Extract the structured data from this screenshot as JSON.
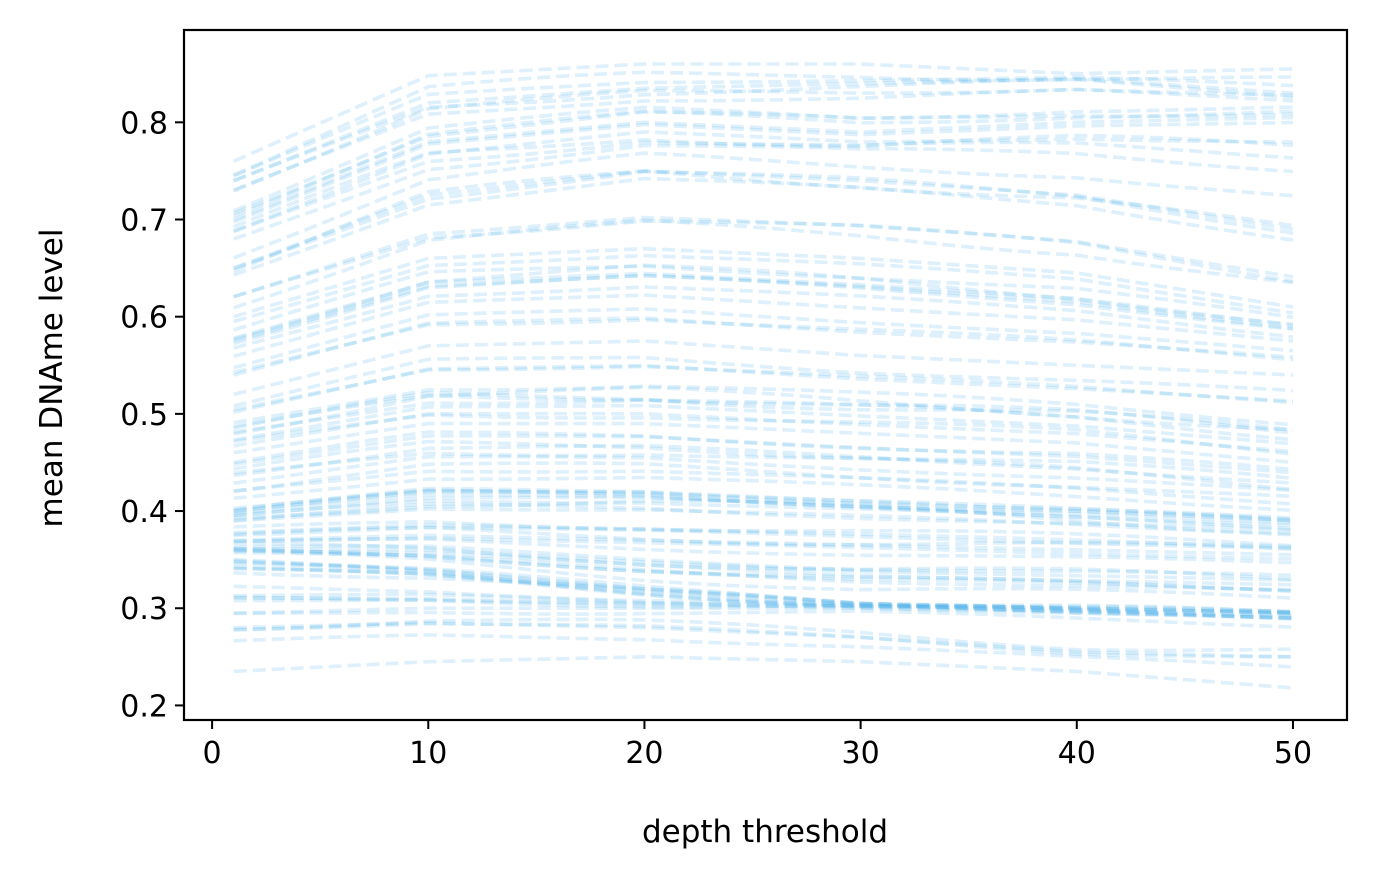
{
  "chart_data": {
    "type": "line",
    "title": "",
    "xlabel": "depth threshold",
    "ylabel": "mean DNAme level",
    "xlim": [
      -1.3,
      52.5
    ],
    "ylim": [
      0.185,
      0.895
    ],
    "xticks": [
      0,
      10,
      20,
      30,
      40,
      50
    ],
    "yticks": [
      0.2,
      0.3,
      0.4,
      0.5,
      0.6,
      0.7,
      0.8
    ],
    "grid": false,
    "legend": "none",
    "line_style": "dashed",
    "line_color": "#56b4e9",
    "line_opacity": 0.2,
    "x": [
      1,
      2,
      3,
      4,
      5,
      6,
      7,
      8,
      9,
      10,
      11,
      12,
      13,
      14,
      15,
      16,
      17,
      18,
      19,
      20,
      21,
      22,
      23,
      24,
      25,
      26,
      27,
      28,
      29,
      30,
      31,
      32,
      33,
      34,
      35,
      36,
      37,
      38,
      39,
      40,
      41,
      42,
      43,
      44,
      45,
      46,
      47,
      48,
      49,
      50
    ],
    "series_summary": {
      "count": 105,
      "x_start": 1,
      "x_end": 50,
      "min_start": 0.235,
      "max_start": 0.76,
      "top_curve_peak": 0.865,
      "top_curve_end": 0.855,
      "bottom_curve_start": 0.235,
      "bottom_curve_end": 0.218
    },
    "representative_series": [
      {
        "values_at": [
          1,
          10,
          20,
          30,
          40,
          50
        ],
        "values": [
          0.76,
          0.848,
          0.86,
          0.86,
          0.85,
          0.855
        ]
      },
      {
        "values_at": [
          1,
          10,
          20,
          30,
          40,
          50
        ],
        "values": [
          0.74,
          0.82,
          0.835,
          0.84,
          0.845,
          0.83
        ]
      },
      {
        "values_at": [
          1,
          10,
          20,
          30,
          40,
          50
        ],
        "values": [
          0.7,
          0.78,
          0.8,
          0.79,
          0.8,
          0.805
        ]
      },
      {
        "values_at": [
          1,
          10,
          20,
          30,
          40,
          50
        ],
        "values": [
          0.65,
          0.725,
          0.75,
          0.74,
          0.725,
          0.69
        ]
      },
      {
        "values_at": [
          1,
          10,
          20,
          30,
          40,
          50
        ],
        "values": [
          0.6,
          0.66,
          0.67,
          0.66,
          0.645,
          0.61
        ]
      },
      {
        "values_at": [
          1,
          10,
          20,
          30,
          40,
          50
        ],
        "values": [
          0.52,
          0.57,
          0.575,
          0.56,
          0.55,
          0.54
        ]
      },
      {
        "values_at": [
          1,
          10,
          20,
          30,
          40,
          50
        ],
        "values": [
          0.46,
          0.49,
          0.49,
          0.48,
          0.47,
          0.45
        ]
      },
      {
        "values_at": [
          1,
          10,
          20,
          30,
          40,
          50
        ],
        "values": [
          0.4,
          0.42,
          0.42,
          0.41,
          0.4,
          0.39
        ]
      },
      {
        "values_at": [
          1,
          10,
          20,
          30,
          40,
          50
        ],
        "values": [
          0.37,
          0.375,
          0.37,
          0.365,
          0.36,
          0.355
        ]
      },
      {
        "values_at": [
          1,
          10,
          20,
          30,
          40,
          50
        ],
        "values": [
          0.35,
          0.34,
          0.32,
          0.305,
          0.3,
          0.295
        ]
      },
      {
        "values_at": [
          1,
          10,
          20,
          30,
          40,
          50
        ],
        "values": [
          0.295,
          0.3,
          0.3,
          0.3,
          0.295,
          0.29
        ]
      },
      {
        "values_at": [
          1,
          10,
          20,
          30,
          40,
          50
        ],
        "values": [
          0.28,
          0.285,
          0.28,
          0.27,
          0.255,
          0.25
        ]
      },
      {
        "values_at": [
          1,
          10,
          20,
          30,
          40,
          50
        ],
        "values": [
          0.235,
          0.245,
          0.25,
          0.245,
          0.235,
          0.218
        ]
      }
    ]
  }
}
